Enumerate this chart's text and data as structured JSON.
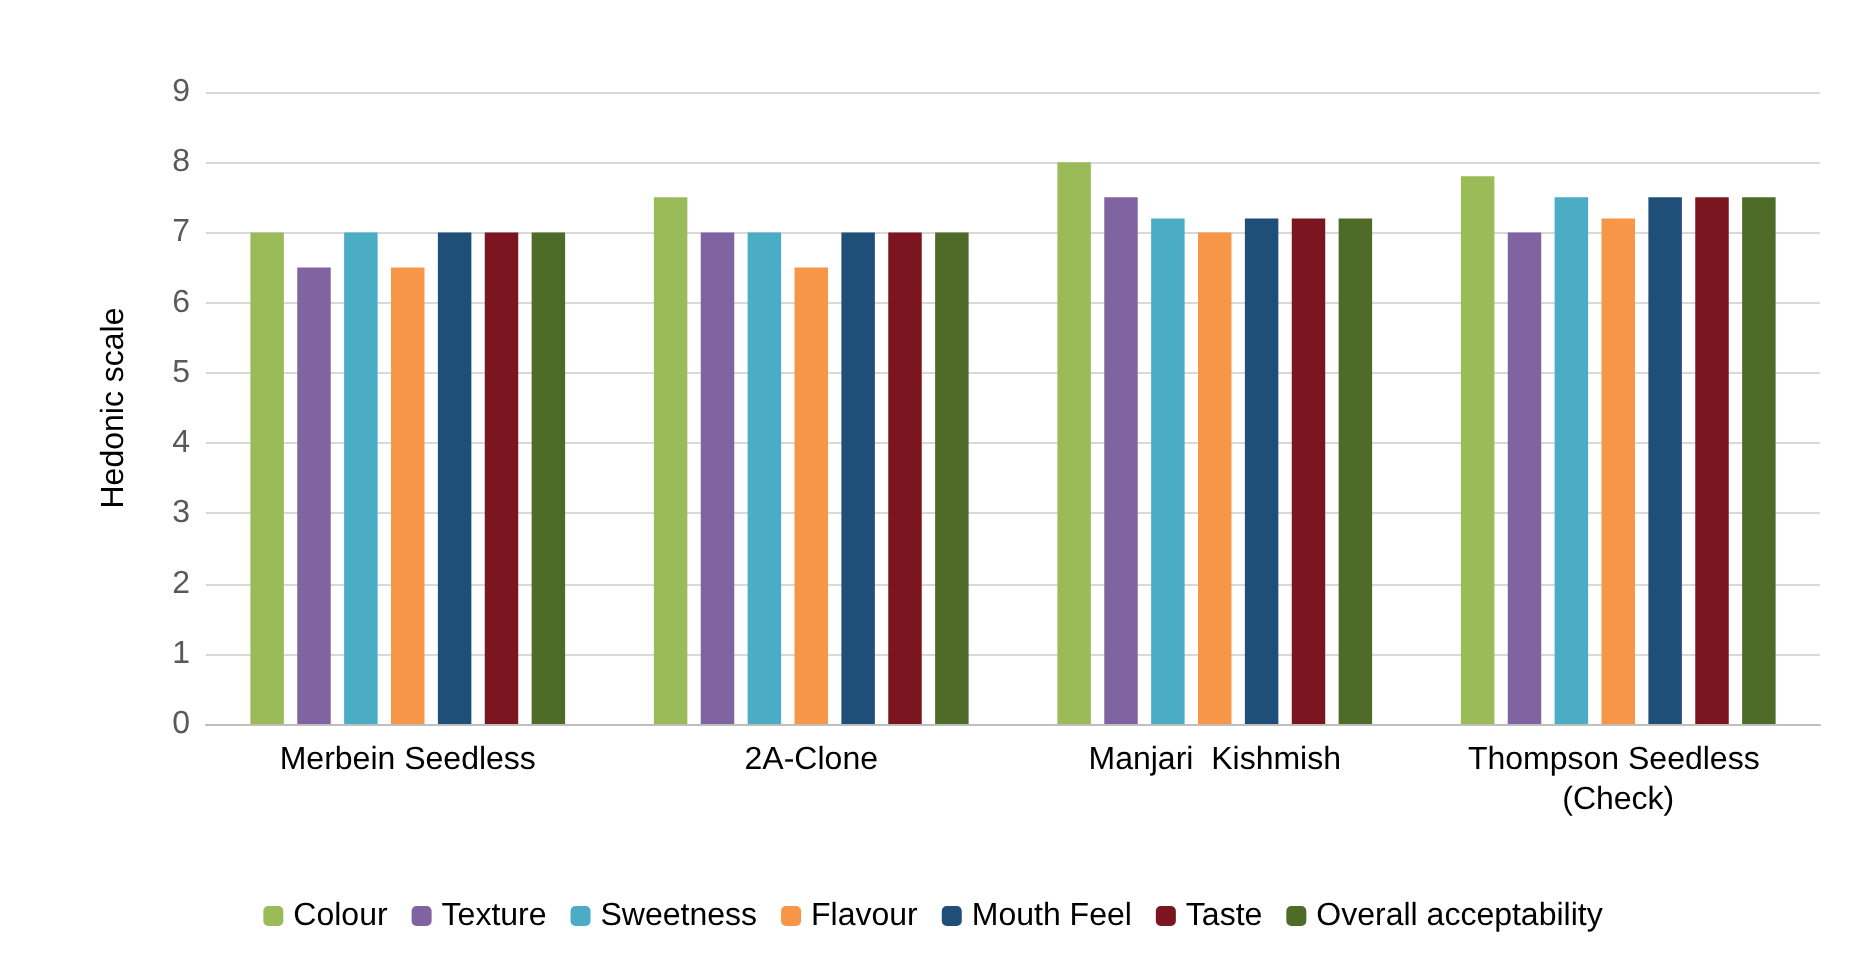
{
  "chart_data": {
    "type": "bar",
    "ylabel": "Hedonic scale",
    "categories": [
      "Merbein Seedless",
      "2A-Clone",
      "Manjari  Kishmish",
      "Thompson Seedless (Check)"
    ],
    "series": [
      {
        "name": "Colour",
        "color": "#9bbb59",
        "values": [
          7,
          7.5,
          8,
          7.8
        ]
      },
      {
        "name": "Texture",
        "color": "#8064a2",
        "values": [
          6.5,
          7,
          7.5,
          7
        ]
      },
      {
        "name": "Sweetness",
        "color": "#4bacc6",
        "values": [
          7,
          7,
          7.2,
          7.5
        ]
      },
      {
        "name": "Flavour",
        "color": "#f79646",
        "values": [
          6.5,
          6.5,
          7,
          7.2
        ]
      },
      {
        "name": "Mouth Feel",
        "color": "#1f4e79",
        "values": [
          7,
          7,
          7.2,
          7.5
        ]
      },
      {
        "name": "Taste",
        "color": "#7b1520",
        "values": [
          7,
          7,
          7.2,
          7.5
        ]
      },
      {
        "name": "Overall acceptability",
        "color": "#4f6b28",
        "values": [
          7,
          7,
          7.2,
          7.5
        ]
      }
    ],
    "ylim": [
      0,
      9
    ],
    "yticks": [
      0,
      1,
      2,
      3,
      4,
      5,
      6,
      7,
      8,
      9
    ],
    "grid": "y",
    "legend": "bottom"
  }
}
